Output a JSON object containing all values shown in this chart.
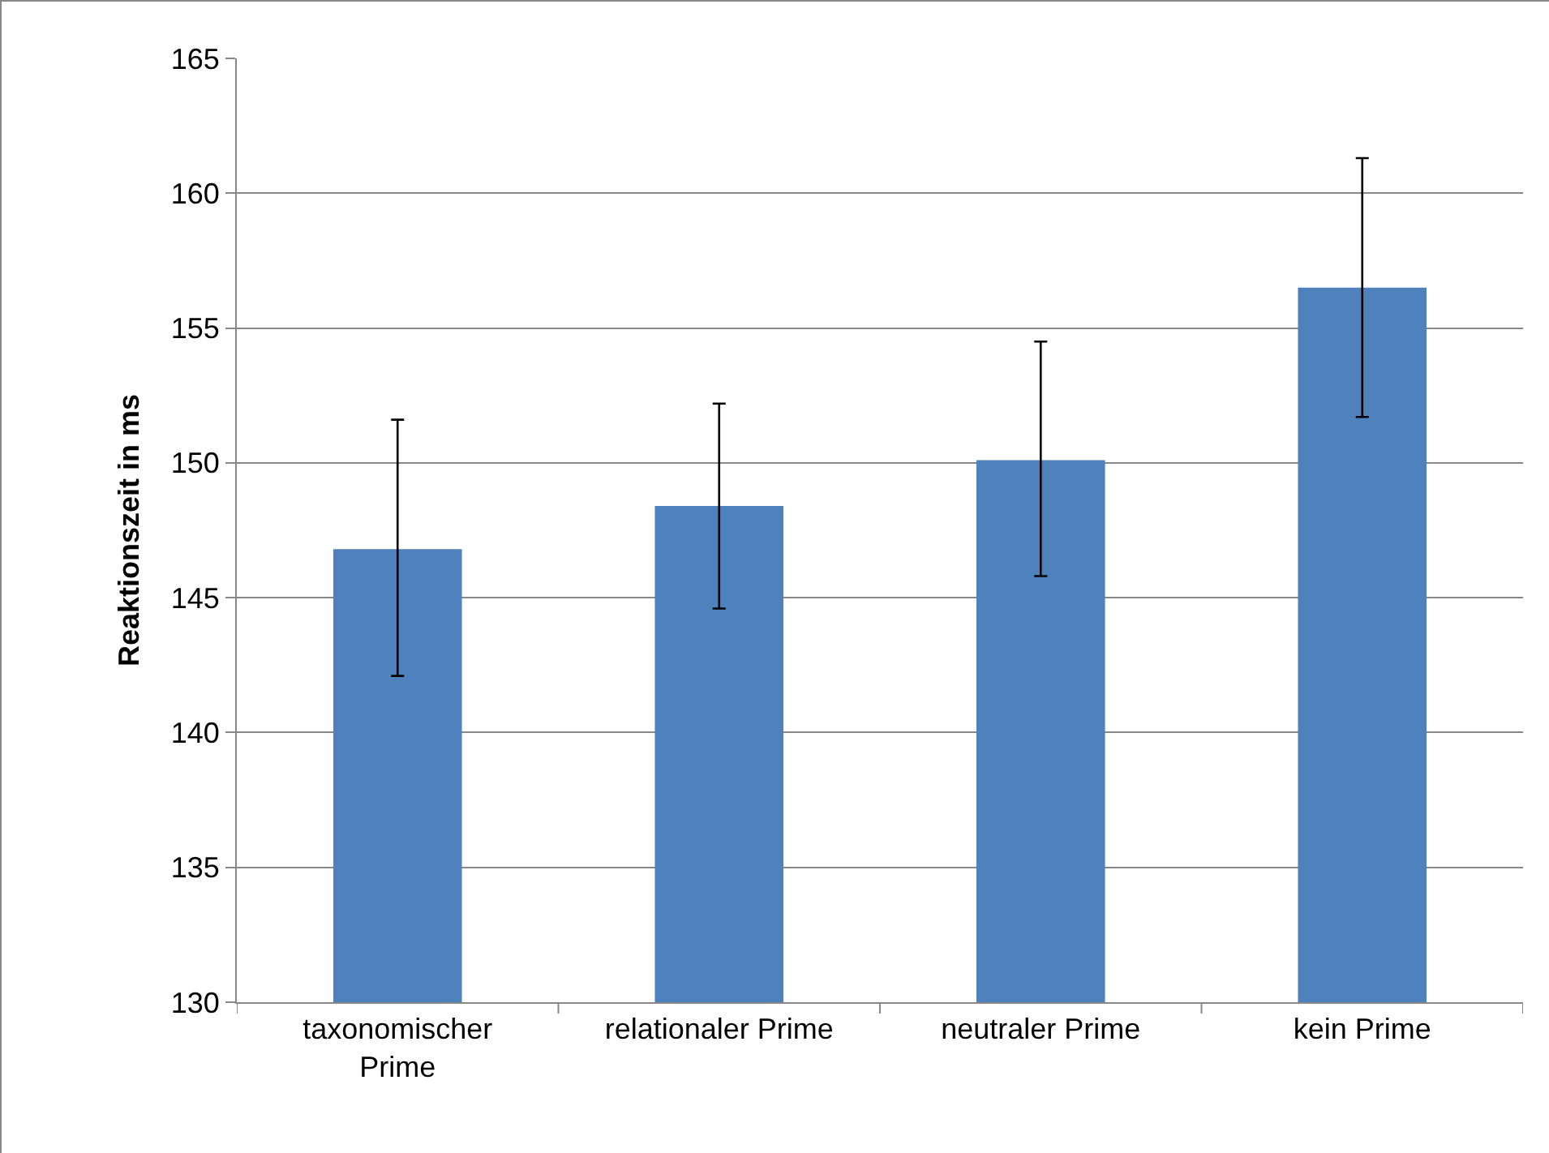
{
  "chart_data": {
    "type": "bar",
    "ylabel": "Reaktionszeit in ms",
    "categories": [
      "taxonomischer Prime",
      "relationaler Prime",
      "neutraler Prime",
      "kein Prime"
    ],
    "values": [
      146.8,
      148.4,
      150.1,
      156.5
    ],
    "errors": [
      [
        142.1,
        151.6
      ],
      [
        144.6,
        152.2
      ],
      [
        145.8,
        154.5
      ],
      [
        151.7,
        161.3
      ]
    ],
    "color": "#4f81bd",
    "ylim": [
      130,
      165
    ],
    "yticks": [
      130,
      135,
      140,
      145,
      150,
      155,
      160,
      165
    ],
    "grid": "y",
    "legend": false
  }
}
